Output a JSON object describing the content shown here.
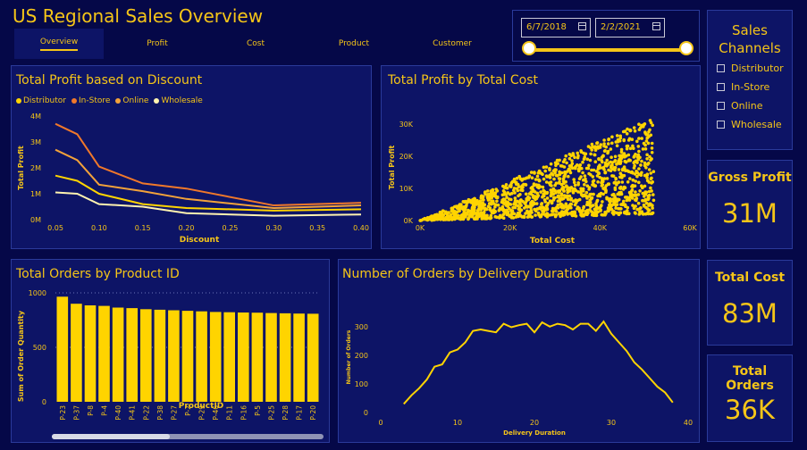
{
  "header": {
    "title": "US Regional Sales Overview"
  },
  "nav": {
    "tabs": [
      {
        "label": "Overview"
      },
      {
        "label": "Profit"
      },
      {
        "label": "Cost"
      },
      {
        "label": "Product"
      },
      {
        "label": "Customer"
      }
    ]
  },
  "dates": {
    "start": "6/7/2018",
    "end": "2/2/2021"
  },
  "sales_channels": {
    "title": "Sales Channels",
    "title_line1": "Sales",
    "title_line2": "Channels",
    "items": [
      {
        "label": "Distributor"
      },
      {
        "label": "In-Store"
      },
      {
        "label": "Online"
      },
      {
        "label": "Wholesale"
      }
    ]
  },
  "kpis": {
    "gross_profit": {
      "label": "Gross Profit",
      "value": "31M"
    },
    "total_cost": {
      "label": "Total Cost",
      "value": "83M"
    },
    "total_orders": {
      "label": "Total Orders",
      "value": "36K"
    }
  },
  "colors": {
    "distributor": "#ffd400",
    "in_store": "#f0782a",
    "online": "#f2a23a",
    "wholesale": "#fff3b0",
    "accent": "#f5c518"
  },
  "chart_data": [
    {
      "id": "profit_discount",
      "type": "line",
      "title": "Total Profit based on Discount",
      "xlabel": "Discount",
      "ylabel": "Total Profit",
      "x": [
        0.05,
        0.075,
        0.1,
        0.15,
        0.2,
        0.3,
        0.4
      ],
      "x_ticks": [
        "0.05",
        "0.10",
        "0.15",
        "0.20",
        "0.25",
        "0.30",
        "0.35",
        "0.40"
      ],
      "y_ticks": [
        "0M",
        "1M",
        "2M",
        "3M",
        "4M"
      ],
      "ylim": [
        0,
        4
      ],
      "series": [
        {
          "name": "Distributor",
          "values": [
            1.7,
            1.5,
            1.0,
            0.6,
            0.45,
            0.35,
            0.4
          ]
        },
        {
          "name": "In-Store",
          "values": [
            3.7,
            3.3,
            2.05,
            1.4,
            1.2,
            0.55,
            0.65
          ]
        },
        {
          "name": "Online",
          "values": [
            2.7,
            2.3,
            1.35,
            1.1,
            0.8,
            0.45,
            0.55
          ]
        },
        {
          "name": "Wholesale",
          "values": [
            1.05,
            1.0,
            0.6,
            0.5,
            0.25,
            0.15,
            0.2
          ]
        }
      ]
    },
    {
      "id": "profit_cost",
      "type": "scatter",
      "title": "Total Profit by Total Cost",
      "xlabel": "Total Cost",
      "ylabel": "Total Profit",
      "x_ticks": [
        "0K",
        "20K",
        "40K",
        "60K"
      ],
      "y_ticks": [
        "0K",
        "10K",
        "20K",
        "30K"
      ],
      "xlim": [
        0,
        60
      ],
      "ylim": [
        0,
        33
      ],
      "note_shape": "fan from origin: profit between 0.05x and 0.6x, cost up to 52K"
    },
    {
      "id": "orders_product",
      "type": "bar",
      "title": "Total Orders by Product ID",
      "xlabel": "ProductID",
      "ylabel": "Sum of Order Quantity",
      "categories": [
        "P-23",
        "P-37",
        "P-8",
        "P-4",
        "P-40",
        "P-41",
        "P-22",
        "P-38",
        "P-27",
        "P-2",
        "P-29",
        "P-46",
        "P-11",
        "P-16",
        "P-5",
        "P-25",
        "P-28",
        "P-17",
        "P-20"
      ],
      "values": [
        965,
        900,
        885,
        880,
        865,
        860,
        850,
        845,
        840,
        835,
        830,
        825,
        822,
        820,
        818,
        815,
        812,
        810,
        808
      ],
      "y_ticks": [
        "0",
        "500",
        "1000"
      ],
      "ylim": [
        0,
        1000
      ]
    },
    {
      "id": "orders_duration",
      "type": "line",
      "title": "Number of Orders by Delivery Duration",
      "xlabel": "Delivery Duration",
      "ylabel": "Number of Orders",
      "x": [
        3,
        4,
        5,
        6,
        7,
        8,
        9,
        10,
        11,
        12,
        13,
        14,
        15,
        16,
        17,
        18,
        19,
        20,
        21,
        22,
        23,
        24,
        25,
        26,
        27,
        28,
        29,
        30,
        31,
        32,
        33,
        34,
        35,
        36,
        37,
        38
      ],
      "values": [
        30,
        60,
        85,
        115,
        160,
        168,
        210,
        220,
        245,
        285,
        290,
        285,
        280,
        310,
        298,
        305,
        310,
        280,
        315,
        300,
        310,
        305,
        290,
        310,
        310,
        285,
        318,
        275,
        245,
        215,
        175,
        150,
        120,
        90,
        70,
        35
      ],
      "x_ticks": [
        "0",
        "10",
        "20",
        "30",
        "40"
      ],
      "y_ticks": [
        "0",
        "100",
        "200",
        "300"
      ],
      "xlim": [
        0,
        40
      ],
      "ylim": [
        0,
        340
      ]
    }
  ]
}
